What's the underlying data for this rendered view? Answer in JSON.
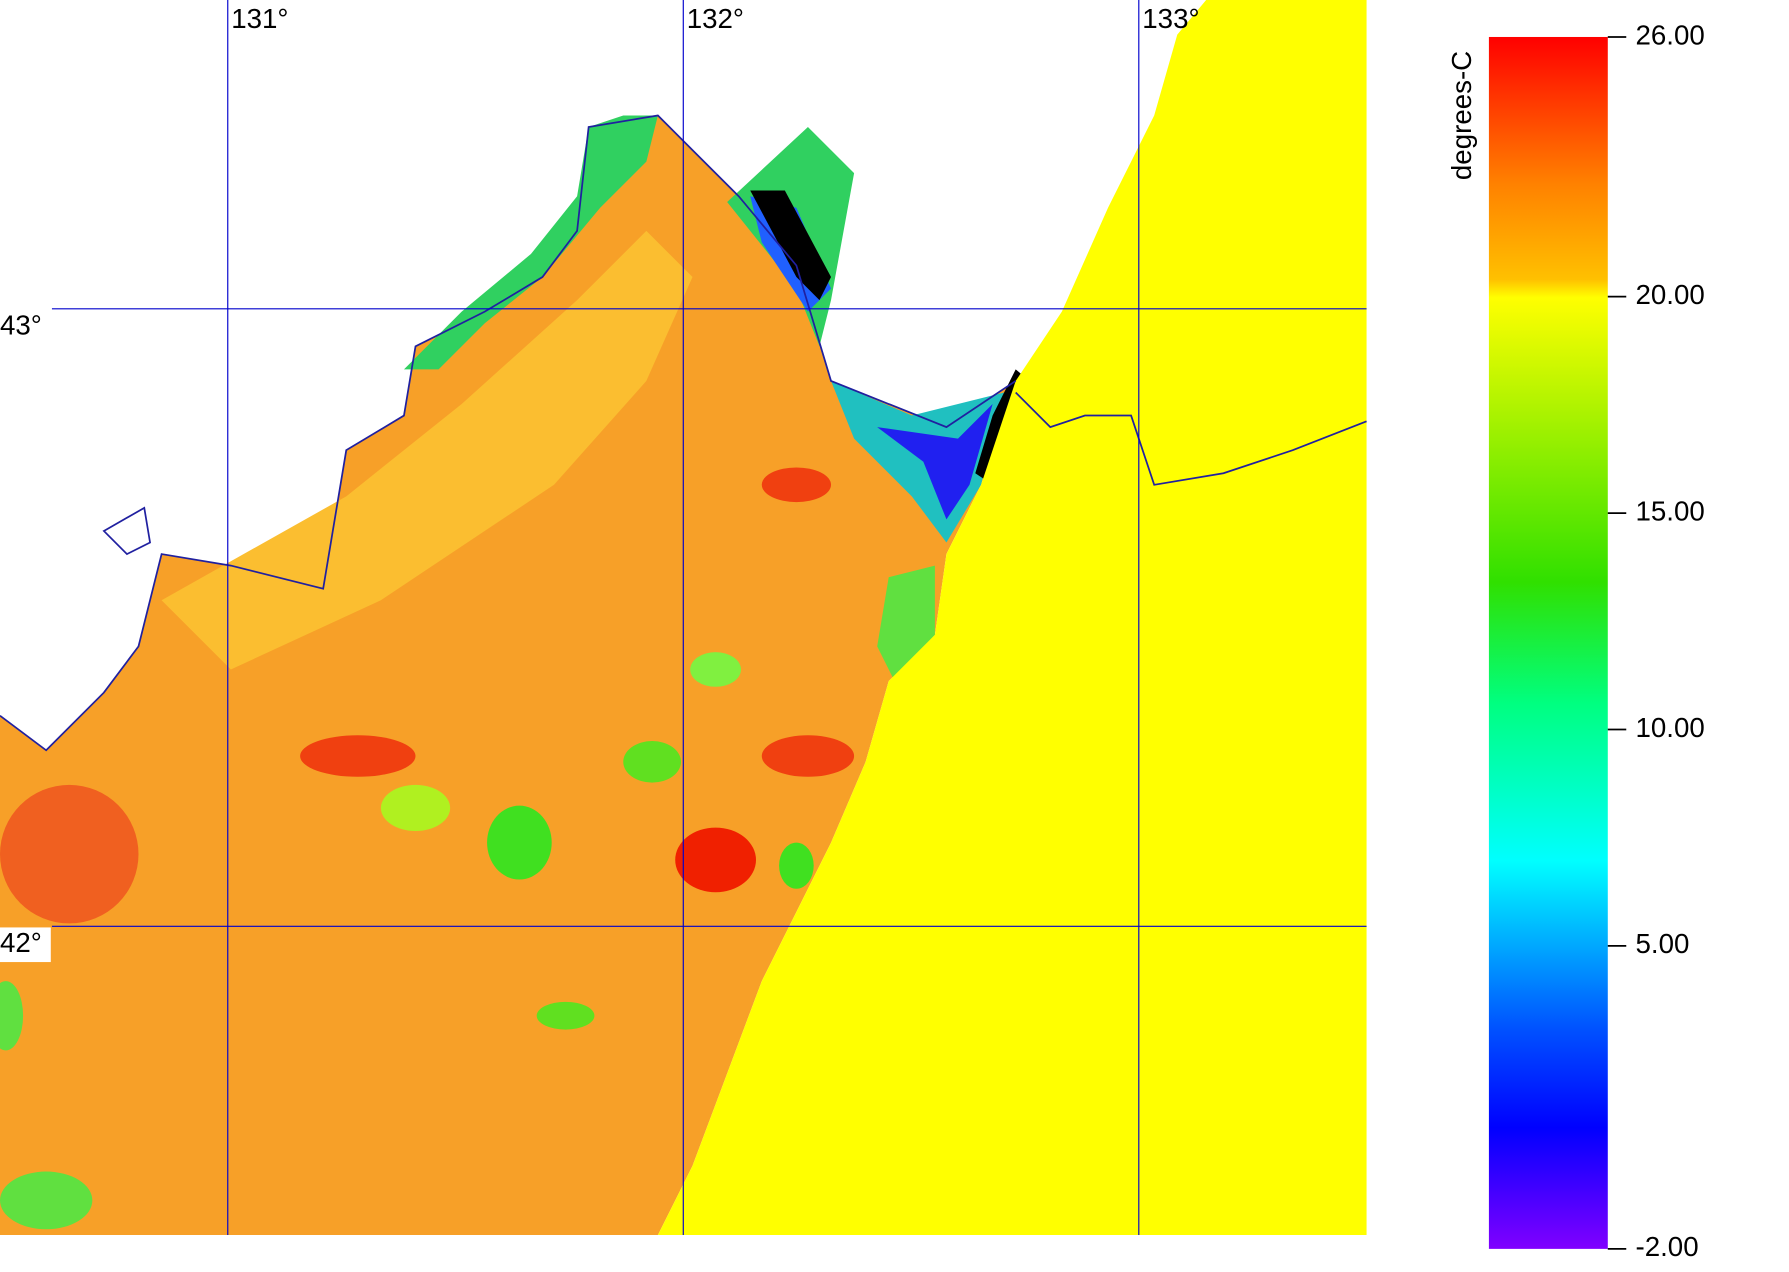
{
  "chart_data": {
    "type": "map",
    "xlim": [
      130.5,
      133.5
    ],
    "ylim": [
      41.5,
      43.5
    ],
    "xticks": [
      {
        "value": 131,
        "label": "131°"
      },
      {
        "value": 132,
        "label": "132°"
      },
      {
        "value": 133,
        "label": "133°"
      }
    ],
    "yticks": [
      {
        "value": 43,
        "label": "43°"
      },
      {
        "value": 42,
        "label": "42°"
      }
    ],
    "grid": true,
    "grid_color": "#0000cc",
    "colorbar": {
      "label": "degrees-C",
      "lim": [
        -2,
        26
      ],
      "ticks": [
        {
          "value": 26,
          "label": "26.00"
        },
        {
          "value": 20,
          "label": "20.00"
        },
        {
          "value": 15,
          "label": "15.00"
        },
        {
          "value": 10,
          "label": "10.00"
        },
        {
          "value": 5,
          "label": "5.00"
        },
        {
          "value": -2,
          "label": "-2.00"
        }
      ]
    }
  }
}
